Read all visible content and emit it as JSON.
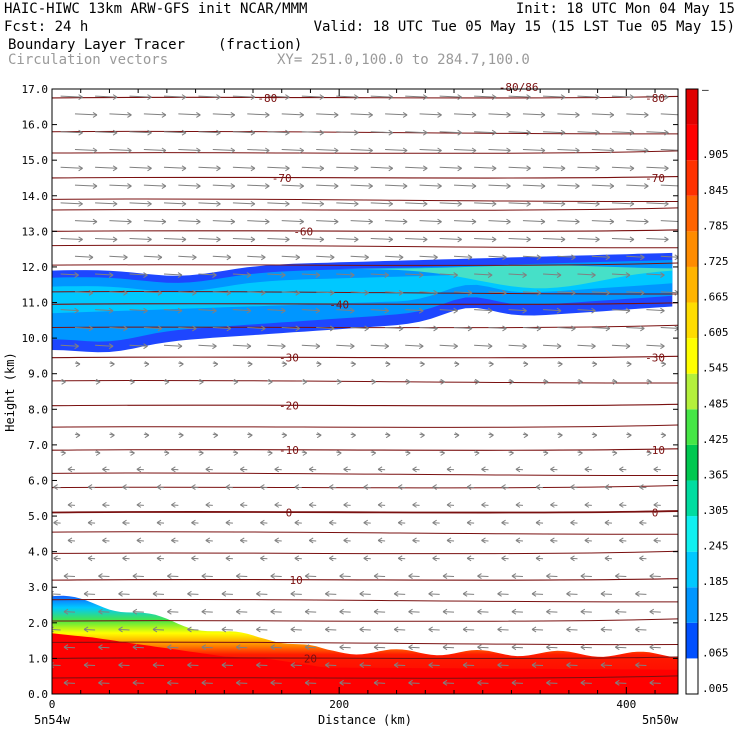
{
  "header": {
    "left1": "HAIC-HIWC 13km ARW-GFS init   NCAR/MMM",
    "left2": "Fcst:   24 h",
    "right1": "Init: 18 UTC Mon 04 May 15",
    "right2": "Valid: 18 UTC Tue 05 May 15 (15 LST Tue 05 May 15)",
    "field_name": "Boundary Layer Tracer",
    "field_units": "(fraction)",
    "vector_label": "Circulation vectors",
    "xy_label": "XY= 251.0,100.0 to 284.7,100.0"
  },
  "chart_data": {
    "type": "heatmap",
    "title": "Boundary Layer Tracer",
    "xlabel": "Distance (km)",
    "ylabel": "Height (km)",
    "xlim": [
      0,
      436
    ],
    "ylim": [
      0,
      17
    ],
    "x_ticks": [
      0,
      200,
      400
    ],
    "y_ticks": [
      0,
      1,
      2,
      3,
      4,
      5,
      6,
      7,
      8,
      9,
      10,
      11,
      12,
      13,
      14,
      15,
      16,
      17
    ],
    "y_tick_labels": [
      "0.0",
      "1.0",
      "2.0",
      "3.0",
      "4.0",
      "5.0",
      "6.0",
      "7.0",
      "8.0",
      "9.0",
      "10.0",
      "11.0",
      "12.0",
      "13.0",
      "14.0",
      "15.0",
      "16.0",
      "17.0"
    ],
    "x_end_labels": [
      "5n54w",
      "5n50w"
    ],
    "colorbar_levels": [
      ".005",
      ".065",
      ".125",
      ".185",
      ".245",
      ".305",
      ".365",
      ".425",
      ".485",
      ".545",
      ".605",
      ".665",
      ".725",
      ".785",
      ".845",
      ".905",
      "–"
    ],
    "colorbar_colors": [
      "#ffffff",
      "#0050ff",
      "#0096ff",
      "#00c8ff",
      "#10f0f0",
      "#00dca0",
      "#00c850",
      "#46e646",
      "#b4f03c",
      "#ffff00",
      "#ffdc00",
      "#ffb400",
      "#ff8c00",
      "#ff6400",
      "#ff3200",
      "#ff0000",
      "#e00000"
    ],
    "temperature_contours": [
      {
        "level": "-80",
        "y": 16.75,
        "labels_x": [
          150,
          420
        ]
      },
      {
        "level": "-70",
        "y": 14.5,
        "labels_x": [
          160,
          420
        ]
      },
      {
        "level": "-60",
        "y": 13.0,
        "labels_x": [
          175
        ]
      },
      {
        "level": "-40",
        "y": 10.95,
        "labels_x": [
          200
        ]
      },
      {
        "level": "-30",
        "y": 9.45,
        "labels_x": [
          165,
          420
        ]
      },
      {
        "level": "-20",
        "y": 8.1,
        "labels_x": [
          165
        ]
      },
      {
        "level": "-10",
        "y": 6.85,
        "labels_x": [
          165,
          420
        ]
      },
      {
        "level": "0",
        "y": 5.1,
        "labels_x": [
          165,
          420
        ]
      },
      {
        "level": "10",
        "y": 3.2,
        "labels_x": [
          170
        ]
      },
      {
        "level": "20",
        "y": 1.0,
        "labels_x": [
          180
        ]
      }
    ],
    "extra_contour_labels": [
      "-80/86"
    ],
    "upper_tracer_layer": {
      "base_km": 9.6,
      "top_km": 12.4,
      "max_fraction": 0.5
    },
    "boundary_layer_top_km": [
      [
        0,
        2.75
      ],
      [
        30,
        2.55
      ],
      [
        50,
        2.35
      ],
      [
        120,
        1.7
      ],
      [
        150,
        1.6
      ],
      [
        190,
        1.2
      ],
      [
        436,
        1.1
      ]
    ],
    "vectors": "westerly aloft, easterly near surface"
  },
  "colors": {
    "contour": "#7a1010",
    "vector": "#808080"
  }
}
